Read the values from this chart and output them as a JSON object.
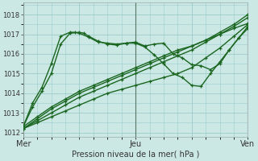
{
  "xlabel": "Pression niveau de la mer( hPa )",
  "bg_color": "#cce8e4",
  "grid_color": "#99cccc",
  "line_color": "#1a6620",
  "ylim": [
    1011.8,
    1018.6
  ],
  "xlim": [
    0,
    96
  ],
  "xtick_labels": [
    "Mer",
    "",
    "Jeu",
    "",
    "Ven"
  ],
  "xtick_positions": [
    0,
    24,
    48,
    72,
    96
  ],
  "ytick_values": [
    1012,
    1013,
    1014,
    1015,
    1016,
    1017,
    1018
  ],
  "vlines": [
    0,
    48,
    96
  ],
  "lines": [
    {
      "x": [
        0,
        6,
        12,
        18,
        24,
        30,
        36,
        42,
        48,
        54,
        60,
        66,
        72,
        78,
        84,
        90,
        96
      ],
      "y": [
        1012.2,
        1012.6,
        1013.0,
        1013.4,
        1013.8,
        1014.1,
        1014.4,
        1014.7,
        1015.0,
        1015.3,
        1015.6,
        1015.9,
        1016.2,
        1016.6,
        1017.0,
        1017.4,
        1017.85
      ],
      "lw": 1.0,
      "marker": true
    },
    {
      "x": [
        0,
        6,
        12,
        18,
        24,
        30,
        36,
        42,
        48,
        54,
        60,
        66,
        72,
        78,
        84,
        90,
        96
      ],
      "y": [
        1012.2,
        1012.7,
        1013.2,
        1013.6,
        1014.0,
        1014.3,
        1014.6,
        1014.9,
        1015.2,
        1015.5,
        1015.8,
        1016.1,
        1016.4,
        1016.7,
        1017.1,
        1017.5,
        1018.0
      ],
      "lw": 1.0,
      "marker": true
    },
    {
      "x": [
        0,
        6,
        12,
        18,
        24,
        30,
        36,
        42,
        48,
        54,
        60,
        66,
        72,
        78,
        84,
        90,
        96
      ],
      "y": [
        1012.3,
        1012.8,
        1013.3,
        1013.7,
        1014.1,
        1014.4,
        1014.7,
        1015.0,
        1015.3,
        1015.6,
        1015.9,
        1016.2,
        1016.4,
        1016.7,
        1017.0,
        1017.3,
        1017.55
      ],
      "lw": 1.0,
      "marker": true
    },
    {
      "x": [
        0,
        6,
        12,
        18,
        24,
        30,
        36,
        42,
        48,
        54,
        60,
        66,
        72,
        78,
        84,
        90,
        96
      ],
      "y": [
        1012.2,
        1012.5,
        1012.8,
        1013.1,
        1013.4,
        1013.7,
        1014.0,
        1014.2,
        1014.4,
        1014.6,
        1014.8,
        1015.0,
        1015.3,
        1015.8,
        1016.3,
        1016.9,
        1017.5
      ],
      "lw": 1.0,
      "marker": true
    },
    {
      "x": [
        0,
        4,
        8,
        12,
        16,
        20,
        24,
        26,
        28,
        32,
        36,
        40,
        44,
        48,
        52,
        56,
        60,
        64,
        68,
        72,
        76,
        80,
        84,
        88,
        92,
        96
      ],
      "y": [
        1012.3,
        1013.3,
        1014.1,
        1015.0,
        1016.5,
        1017.05,
        1017.1,
        1017.05,
        1016.9,
        1016.65,
        1016.5,
        1016.45,
        1016.55,
        1016.6,
        1016.4,
        1016.5,
        1016.55,
        1016.0,
        1015.8,
        1015.45,
        1015.4,
        1015.2,
        1015.5,
        1016.2,
        1016.8,
        1017.3
      ],
      "lw": 1.0,
      "marker": true
    },
    {
      "x": [
        0,
        4,
        8,
        12,
        16,
        20,
        22,
        24,
        28,
        32,
        36,
        40,
        44,
        48,
        52,
        56,
        60,
        64,
        68,
        72,
        76,
        80,
        84,
        88,
        92,
        96
      ],
      "y": [
        1012.3,
        1013.5,
        1014.3,
        1015.5,
        1016.9,
        1017.1,
        1017.1,
        1017.05,
        1016.85,
        1016.6,
        1016.55,
        1016.5,
        1016.55,
        1016.55,
        1016.35,
        1015.95,
        1015.5,
        1015.0,
        1014.8,
        1014.4,
        1014.35,
        1015.0,
        1015.6,
        1016.2,
        1016.8,
        1017.4
      ],
      "lw": 1.0,
      "marker": true
    }
  ]
}
